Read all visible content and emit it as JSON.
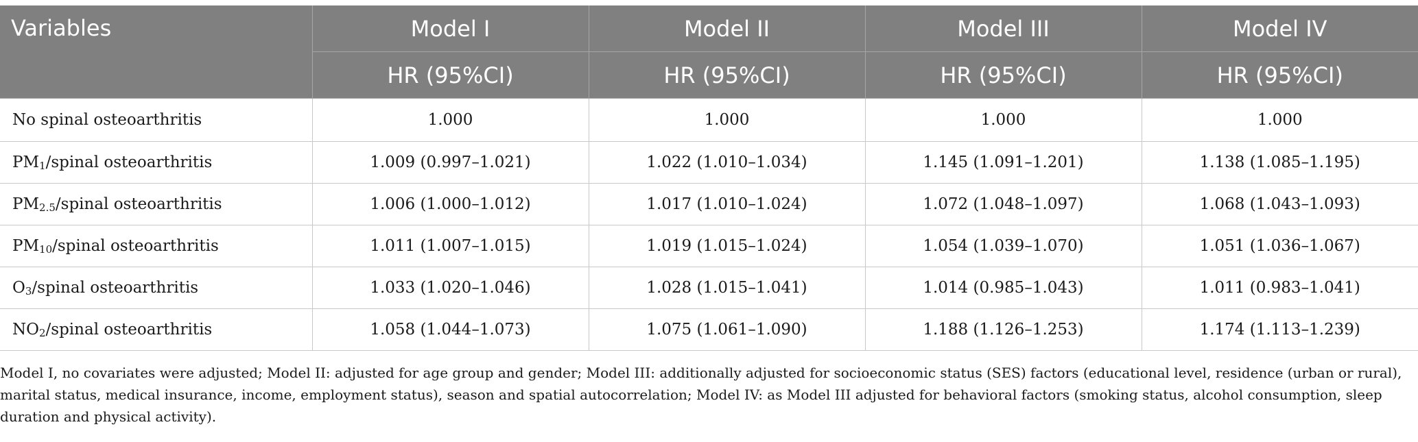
{
  "table": {
    "header": {
      "variables_label": "Variables",
      "models": [
        "Model I",
        "Model II",
        "Model III",
        "Model IV"
      ],
      "sub_label": "HR (95%CI)"
    },
    "rows": [
      {
        "base": "No spinal osteoarthritis",
        "sub": "",
        "suffix": "",
        "values": [
          "1.000",
          "1.000",
          "1.000",
          "1.000"
        ]
      },
      {
        "base": "PM",
        "sub": "1",
        "suffix": "/spinal osteoarthritis",
        "values": [
          "1.009 (0.997–1.021)",
          "1.022 (1.010–1.034)",
          "1.145 (1.091–1.201)",
          "1.138 (1.085–1.195)"
        ]
      },
      {
        "base": "PM",
        "sub": "2.5",
        "suffix": "/spinal osteoarthritis",
        "values": [
          "1.006 (1.000–1.012)",
          "1.017 (1.010–1.024)",
          "1.072 (1.048–1.097)",
          "1.068 (1.043–1.093)"
        ]
      },
      {
        "base": "PM",
        "sub": "10",
        "suffix": "/spinal osteoarthritis",
        "values": [
          "1.011 (1.007–1.015)",
          "1.019 (1.015–1.024)",
          "1.054 (1.039–1.070)",
          "1.051 (1.036–1.067)"
        ]
      },
      {
        "base": "O",
        "sub": "3",
        "suffix": "/spinal osteoarthritis",
        "values": [
          "1.033 (1.020–1.046)",
          "1.028 (1.015–1.041)",
          "1.014 (0.985–1.043)",
          "1.011 (0.983–1.041)"
        ]
      },
      {
        "base": "NO",
        "sub": "2",
        "suffix": "/spinal osteoarthritis",
        "values": [
          "1.058 (1.044–1.073)",
          "1.075 (1.061–1.090)",
          "1.188 (1.126–1.253)",
          "1.174 (1.113–1.239)"
        ]
      }
    ]
  },
  "footnote": "Model I, no covariates were adjusted; Model II: adjusted for age group and gender; Model III: additionally adjusted for socioeconomic status (SES) factors (educational level, residence (urban or rural), marital status, medical insurance, income, employment status), season and spatial autocorrelation; Model IV: as Model III adjusted for behavioral factors (smoking status, alcohol consumption, sleep duration and physical activity).",
  "colors": {
    "header_bg": "#808080",
    "header_text": "#ffffff",
    "grid": "#c8c8c8"
  }
}
